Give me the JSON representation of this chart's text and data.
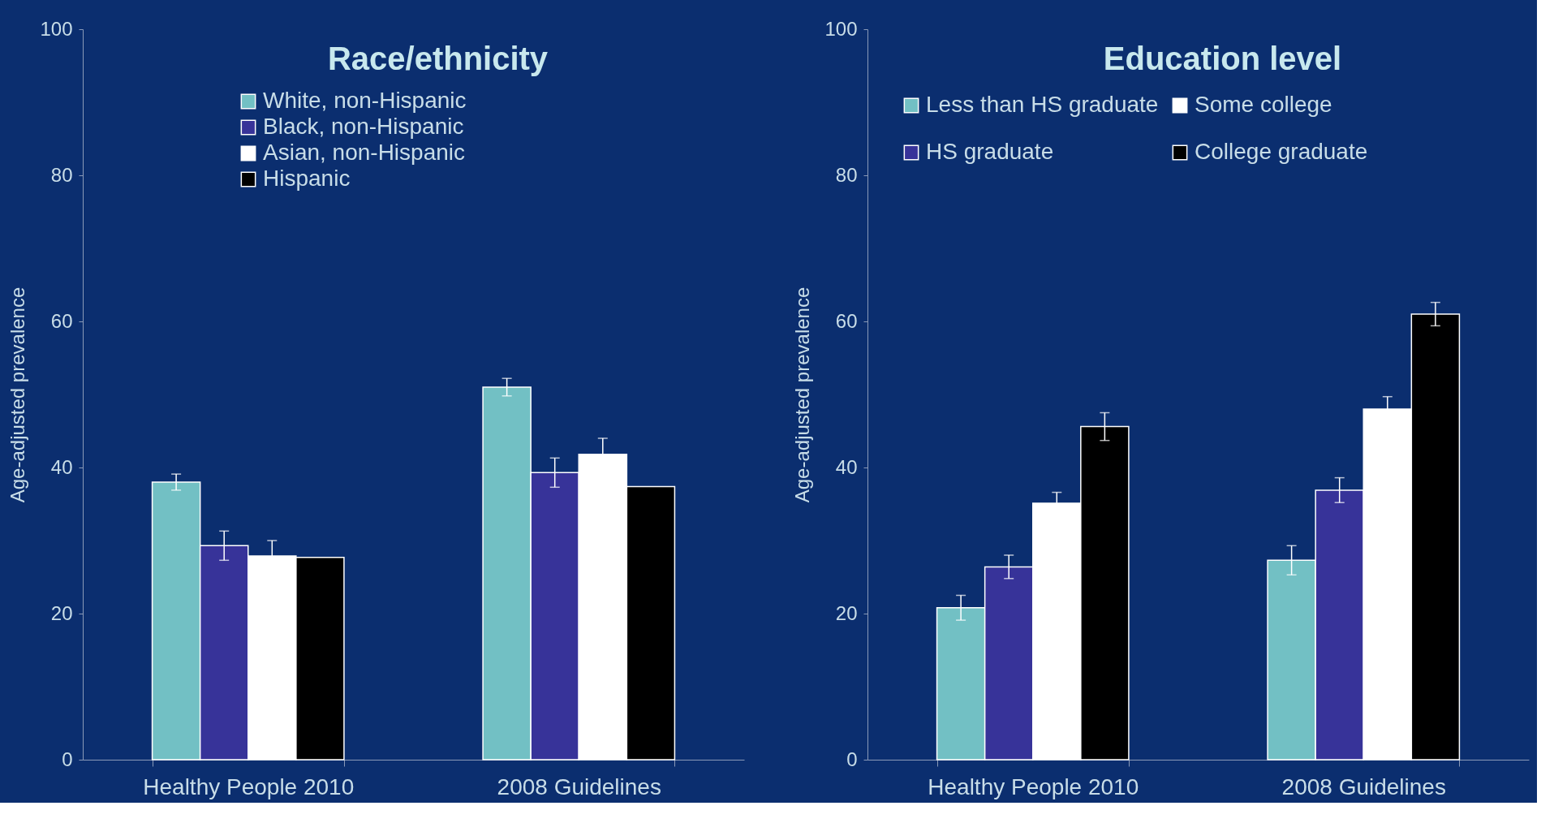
{
  "chart_data": [
    {
      "type": "bar",
      "title": "Race/ethnicity",
      "ylabel": "Age-adjusted prevalence",
      "categories": [
        "Healthy People 2010",
        "2008 Guidelines"
      ],
      "ylim": [
        0,
        100
      ],
      "yticks": [
        0,
        20,
        40,
        60,
        80,
        100
      ],
      "grid": false,
      "legend": "top",
      "series": [
        {
          "name": "White, non-Hispanic",
          "color": "#72c0c4",
          "values": [
            38.0,
            51.0
          ],
          "errors": [
            1.1,
            1.2
          ]
        },
        {
          "name": "Black, non-Hispanic",
          "color": "#373399",
          "values": [
            29.3,
            39.3
          ],
          "errors": [
            2.0,
            2.0
          ]
        },
        {
          "name": "Asian, non-Hispanic",
          "color": "#ffffff",
          "values": [
            27.9,
            41.8
          ],
          "errors": [
            2.1,
            2.2
          ]
        },
        {
          "name": "Hispanic",
          "color": "#000000",
          "values": [
            27.7,
            37.4
          ],
          "errors": [
            null,
            null
          ]
        }
      ]
    },
    {
      "type": "bar",
      "title": "Education level",
      "ylabel": "Age-adjusted prevalence",
      "categories": [
        "Healthy People 2010",
        "2008 Guidelines"
      ],
      "ylim": [
        0,
        100
      ],
      "yticks": [
        0,
        20,
        40,
        60,
        80,
        100
      ],
      "grid": false,
      "legend": "top",
      "series": [
        {
          "name": "Less than HS graduate",
          "color": "#72c0c4",
          "values": [
            20.8,
            27.3
          ],
          "errors": [
            1.7,
            2.0
          ]
        },
        {
          "name": "HS graduate",
          "color": "#373399",
          "values": [
            26.4,
            36.9
          ],
          "errors": [
            1.6,
            1.7
          ]
        },
        {
          "name": "Some college",
          "color": "#ffffff",
          "values": [
            35.1,
            48.0
          ],
          "errors": [
            1.5,
            1.7
          ]
        },
        {
          "name": "College graduate",
          "color": "#000000",
          "values": [
            45.6,
            61.0
          ],
          "errors": [
            1.9,
            1.6
          ]
        }
      ]
    }
  ]
}
